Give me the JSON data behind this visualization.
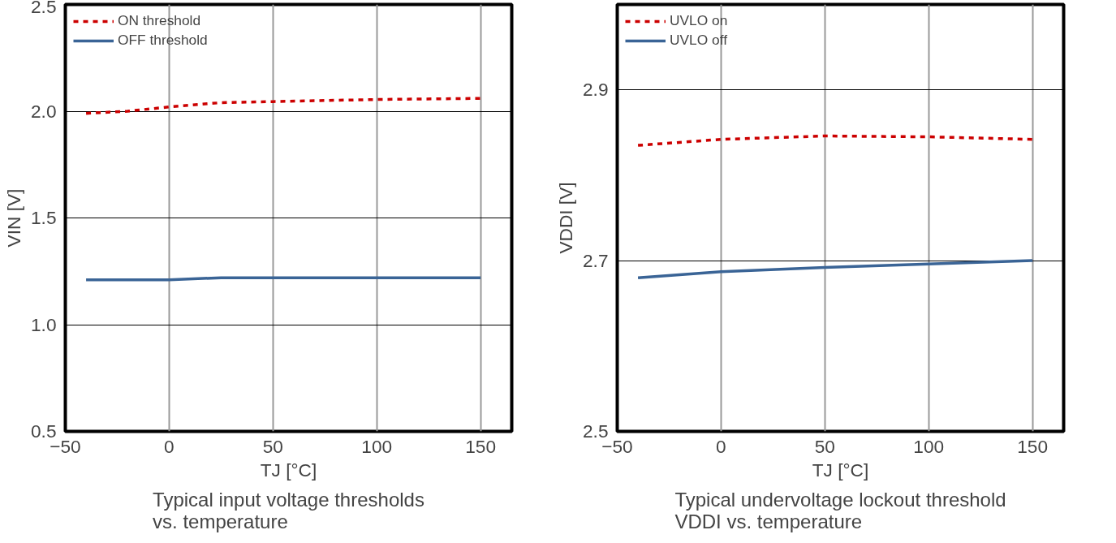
{
  "chart_data": [
    {
      "type": "line",
      "title": "Typical input voltage thresholds\nvs. temperature",
      "xlabel": "TJ [°C]",
      "ylabel": "VIN [V]",
      "xlim": [
        -50,
        165
      ],
      "xticks": [
        -50,
        0,
        50,
        100,
        150
      ],
      "ylim": [
        0.5,
        2.5
      ],
      "yticks": [
        {
          "value": 0.5,
          "label": "0.5"
        },
        {
          "value": 1.0,
          "label": "1.0"
        },
        {
          "value": 1.5,
          "label": "1.5"
        },
        {
          "value": 2.0,
          "label": "2.0"
        },
        {
          "value": 2.5,
          "label": "2.5"
        }
      ],
      "grid": true,
      "legend": "top left",
      "series": [
        {
          "name": "ON threshold",
          "color": "#cc0000",
          "line_style": "dashed",
          "x": [
            -40,
            -20,
            0,
            25,
            50,
            100,
            150
          ],
          "values": [
            1.99,
            2.0,
            2.02,
            2.04,
            2.045,
            2.055,
            2.06
          ]
        },
        {
          "name": "OFF threshold",
          "color": "#3a6496",
          "line_style": "solid",
          "x": [
            -40,
            0,
            25,
            50,
            100,
            150
          ],
          "values": [
            1.21,
            1.21,
            1.22,
            1.22,
            1.22,
            1.22
          ]
        }
      ]
    },
    {
      "type": "line",
      "title": "Typical undervoltage lockout threshold\nVDDI vs. temperature",
      "xlabel": "TJ [°C]",
      "ylabel": "VDDI [V]",
      "xlim": [
        -50,
        165
      ],
      "xticks": [
        -50,
        0,
        50,
        100,
        150
      ],
      "ylim": [
        2.5,
        3.0
      ],
      "yticks": [
        {
          "value": 2.5,
          "label": "2.5"
        },
        {
          "value": 2.7,
          "label": "2.7"
        },
        {
          "value": 2.9,
          "label": "2.9"
        }
      ],
      "grid": true,
      "legend": "top left",
      "series": [
        {
          "name": "UVLO on",
          "color": "#cc0000",
          "line_style": "dashed",
          "x": [
            -40,
            0,
            50,
            100,
            150
          ],
          "values": [
            2.835,
            2.842,
            2.846,
            2.845,
            2.842
          ]
        },
        {
          "name": "UVLO off",
          "color": "#3a6496",
          "line_style": "solid",
          "x": [
            -40,
            0,
            50,
            100,
            150
          ],
          "values": [
            2.68,
            2.687,
            2.692,
            2.696,
            2.7
          ]
        }
      ]
    }
  ]
}
